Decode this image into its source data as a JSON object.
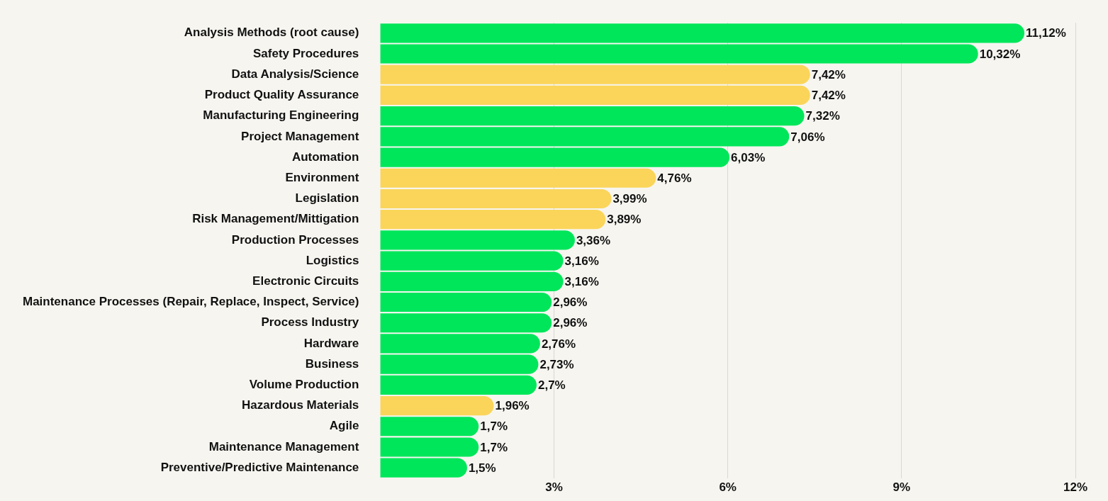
{
  "chart_data": {
    "type": "bar",
    "orientation": "horizontal",
    "categories": [
      "Analysis Methods (root cause)",
      "Safety Procedures",
      "Data Analysis/Science",
      "Product Quality Assurance",
      "Manufacturing Engineering",
      "Project Management",
      "Automation",
      "Environment",
      "Legislation",
      "Risk Management/Mittigation",
      "Production Processes",
      "Logistics",
      "Electronic Circuits",
      "Maintenance Processes (Repair, Replace, Inspect, Service)",
      "Process Industry",
      "Hardware",
      "Business",
      "Volume Production",
      "Hazardous Materials",
      "Agile",
      "Maintenance Management",
      "Preventive/Predictive Maintenance"
    ],
    "values": [
      11.12,
      10.32,
      7.42,
      7.42,
      7.32,
      7.06,
      6.03,
      4.76,
      3.99,
      3.89,
      3.36,
      3.16,
      3.16,
      2.96,
      2.96,
      2.76,
      2.73,
      2.7,
      1.96,
      1.7,
      1.7,
      1.5
    ],
    "value_labels": [
      "11,12%",
      "10,32%",
      "7,42%",
      "7,42%",
      "7,32%",
      "7,06%",
      "6,03%",
      "4,76%",
      "3,99%",
      "3,89%",
      "3,36%",
      "3,16%",
      "3,16%",
      "2,96%",
      "2,96%",
      "2,76%",
      "2,73%",
      "2,7%",
      "1,96%",
      "1,7%",
      "1,7%",
      "1,5%"
    ],
    "colors": [
      "#00e65a",
      "#00e65a",
      "#fad55a",
      "#fad55a",
      "#00e65a",
      "#00e65a",
      "#00e65a",
      "#fad55a",
      "#fad55a",
      "#fad55a",
      "#00e65a",
      "#00e65a",
      "#00e65a",
      "#00e65a",
      "#00e65a",
      "#00e65a",
      "#00e65a",
      "#00e65a",
      "#fad55a",
      "#00e65a",
      "#00e65a",
      "#00e65a"
    ],
    "xlim": [
      0,
      12
    ],
    "xticks": [
      {
        "value": 3,
        "label": "3%"
      },
      {
        "value": 6,
        "label": "6%"
      },
      {
        "value": 9,
        "label": "9%"
      },
      {
        "value": 12,
        "label": "12%"
      }
    ],
    "grid": "x",
    "legend": false
  }
}
